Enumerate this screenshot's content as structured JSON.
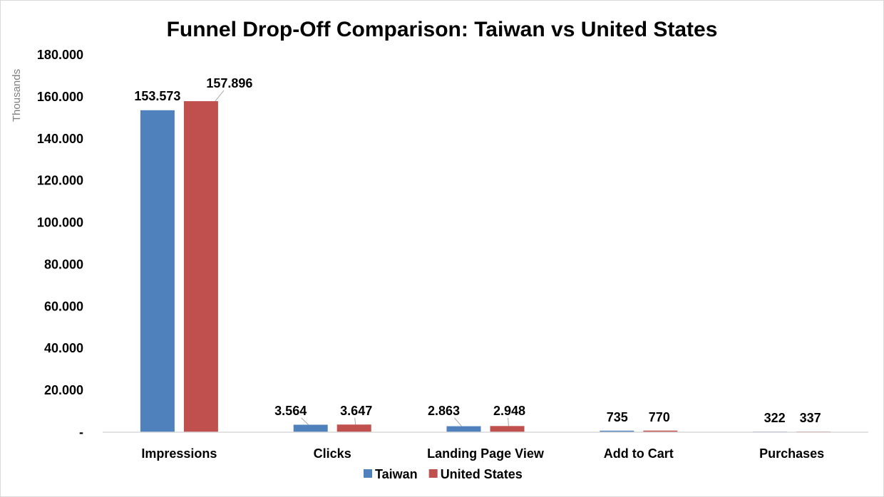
{
  "chart_data": {
    "type": "bar",
    "title": "Funnel Drop-Off Comparison: Taiwan vs United States",
    "unit_label": "Thousands",
    "xlabel": "",
    "ylabel": "",
    "categories": [
      "Impressions",
      "Clicks",
      "Landing Page View",
      "Add to Cart",
      "Purchases"
    ],
    "series": [
      {
        "name": "Taiwan",
        "color": "#4f81bd",
        "values": [
          153573,
          3564,
          2863,
          735,
          322
        ],
        "labels": [
          "153.573",
          "3.564",
          "2.863",
          "735",
          "322"
        ]
      },
      {
        "name": "United States",
        "color": "#c0504d",
        "values": [
          157896,
          3647,
          2948,
          770,
          337
        ],
        "labels": [
          "157.896",
          "3.647",
          "2.948",
          "770",
          "337"
        ]
      }
    ],
    "ylim": [
      0,
      180000
    ],
    "yticks": [
      0,
      20000,
      40000,
      60000,
      80000,
      100000,
      120000,
      140000,
      160000,
      180000
    ],
    "ytick_labels": [
      "-",
      "20.000",
      "40.000",
      "60.000",
      "80.000",
      "100.000",
      "120.000",
      "140.000",
      "160.000",
      "180.000"
    ],
    "grid": false,
    "legend_position": "bottom"
  }
}
